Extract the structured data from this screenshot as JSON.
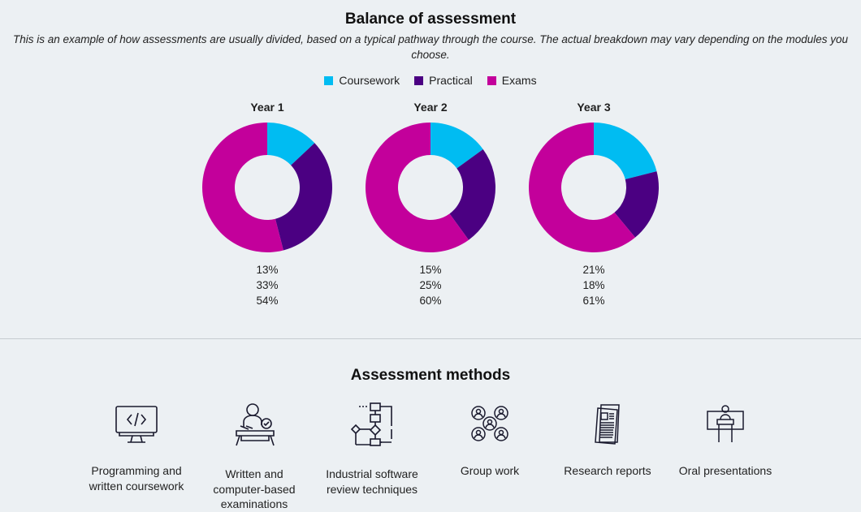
{
  "title": "Balance of assessment",
  "subtitle": "This is an example of how assessments are usually divided, based on a typical pathway through the course. The actual breakdown may vary depending on the modules you choose.",
  "colors": {
    "coursework": "#00bcf2",
    "practical": "#4b0082",
    "exams": "#c3009b"
  },
  "legend": [
    "Coursework",
    "Practical",
    "Exams"
  ],
  "chart_data": [
    {
      "type": "pie",
      "title": "Year 1",
      "categories": [
        "Coursework",
        "Practical",
        "Exams"
      ],
      "values": [
        13,
        33,
        54
      ],
      "labels": [
        "13%",
        "33%",
        "54%"
      ]
    },
    {
      "type": "pie",
      "title": "Year 2",
      "categories": [
        "Coursework",
        "Practical",
        "Exams"
      ],
      "values": [
        15,
        25,
        60
      ],
      "labels": [
        "15%",
        "25%",
        "60%"
      ]
    },
    {
      "type": "pie",
      "title": "Year 3",
      "categories": [
        "Coursework",
        "Practical",
        "Exams"
      ],
      "values": [
        21,
        18,
        61
      ],
      "labels": [
        "21%",
        "18%",
        "61%"
      ]
    }
  ],
  "methods_title": "Assessment methods",
  "methods": [
    {
      "icon": "code-monitor-icon",
      "label_lines": [
        "Programming and",
        "written coursework"
      ]
    },
    {
      "icon": "exam-desk-icon",
      "label_lines": [
        "Written and",
        "computer-based",
        "examinations"
      ]
    },
    {
      "icon": "flowchart-icon",
      "label_lines": [
        "Industrial software",
        "review techniques"
      ]
    },
    {
      "icon": "group-icon",
      "label_lines": [
        "Group work"
      ]
    },
    {
      "icon": "report-icon",
      "label_lines": [
        "Research reports"
      ]
    },
    {
      "icon": "presentation-icon",
      "label_lines": [
        "Oral presentations"
      ]
    }
  ]
}
